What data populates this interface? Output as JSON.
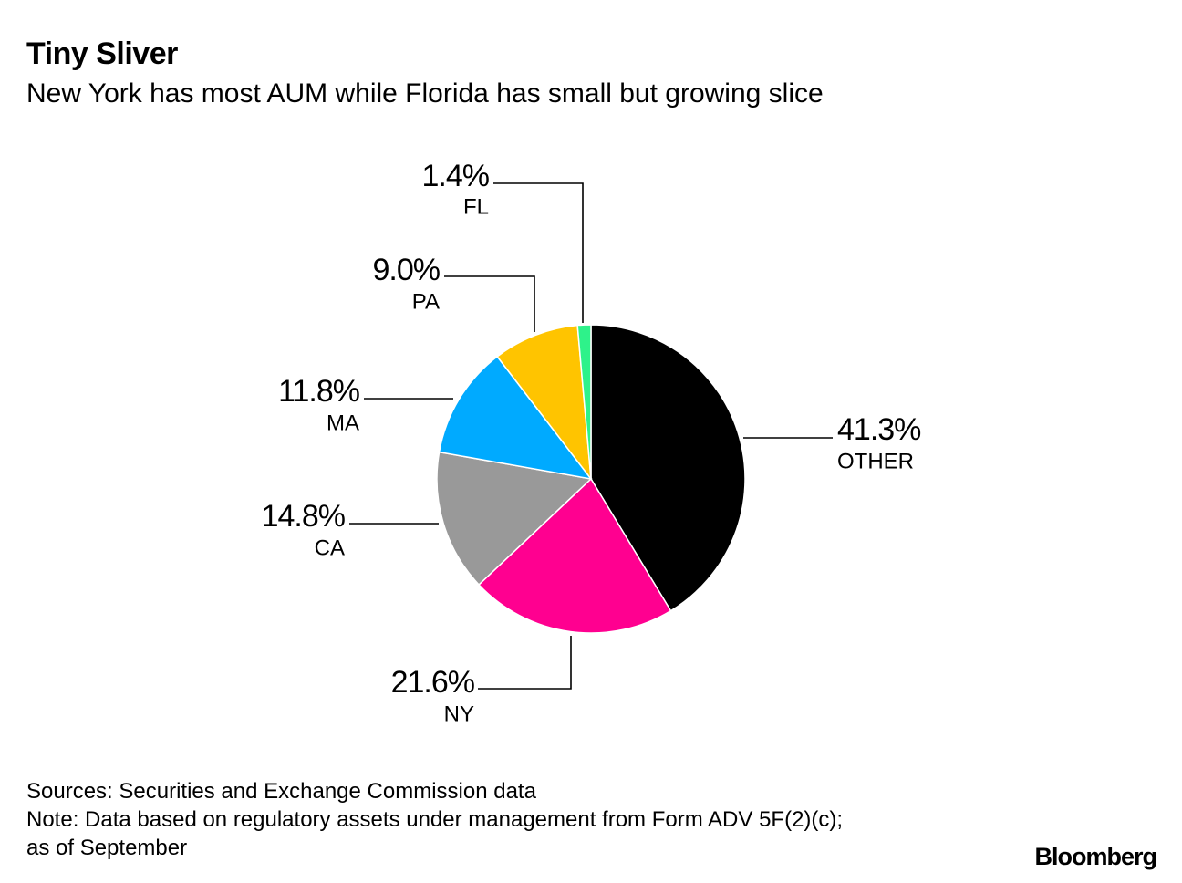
{
  "title": "Tiny Sliver",
  "subtitle": "New York has most AUM while Florida has small but growing slice",
  "chart_data": {
    "type": "pie",
    "title": "Tiny Sliver",
    "subtitle": "New York has most AUM while Florida has small but growing slice",
    "start_angle_deg": 0,
    "direction": "clockwise",
    "slices": [
      {
        "label": "OTHER",
        "value": 41.3,
        "value_label": "41.3%",
        "color": "#000000"
      },
      {
        "label": "NY",
        "value": 21.6,
        "value_label": "21.6%",
        "color": "#ff0090"
      },
      {
        "label": "CA",
        "value": 14.8,
        "value_label": "14.8%",
        "color": "#999999"
      },
      {
        "label": "MA",
        "value": 11.8,
        "value_label": "11.8%",
        "color": "#00aaff"
      },
      {
        "label": "PA",
        "value": 9.0,
        "value_label": "9.0%",
        "color": "#ffc400"
      },
      {
        "label": "FL",
        "value": 1.4,
        "value_label": "1.4%",
        "color": "#2ef28a"
      }
    ]
  },
  "footer": {
    "sources": "Sources: Securities and Exchange Commission data",
    "note_line1": "Note: Data based on regulatory assets under management from Form ADV 5F(2)(c);",
    "note_line2": "as of September"
  },
  "brand": "Bloomberg"
}
